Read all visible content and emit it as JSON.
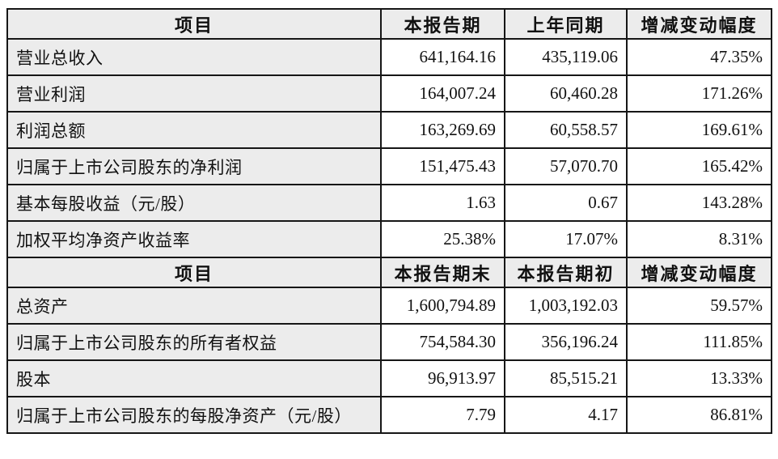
{
  "page": {
    "background": "#ffffff",
    "description_colors": {
      "border": "#161616",
      "header_bg": "#ececec",
      "label_bg": "#ececec",
      "cell_bg": "#ffffff",
      "text": "#111111"
    }
  },
  "table": {
    "column_names": [
      "row-label",
      "value-col-1",
      "value-col-2",
      "change-percent"
    ],
    "sections": [
      {
        "header": [
          "项目",
          "本报告期",
          "上年同期",
          "增减变动幅度"
        ],
        "rows": [
          [
            "营业总收入",
            "641,164.16",
            "435,119.06",
            "47.35%"
          ],
          [
            "营业利润",
            "164,007.24",
            "60,460.28",
            "171.26%"
          ],
          [
            "利润总额",
            "163,269.69",
            "60,558.57",
            "169.61%"
          ],
          [
            "归属于上市公司股东的净利润",
            "151,475.43",
            "57,070.70",
            "165.42%"
          ],
          [
            "基本每股收益（元/股）",
            "1.63",
            "0.67",
            "143.28%"
          ],
          [
            "加权平均净资产收益率",
            "25.38%",
            "17.07%",
            "8.31%"
          ]
        ]
      },
      {
        "header": [
          "项目",
          "本报告期末",
          "本报告期初",
          "增减变动幅度"
        ],
        "rows": [
          [
            "总资产",
            "1,600,794.89",
            "1,003,192.03",
            "59.57%"
          ],
          [
            "归属于上市公司股东的所有者权益",
            "754,584.30",
            "356,196.24",
            "111.85%"
          ],
          [
            "股本",
            "96,913.97",
            "85,515.21",
            "13.33%"
          ],
          [
            "归属于上市公司股东的每股净资产（元/股）",
            "7.79",
            "4.17",
            "86.81%"
          ]
        ]
      }
    ]
  }
}
